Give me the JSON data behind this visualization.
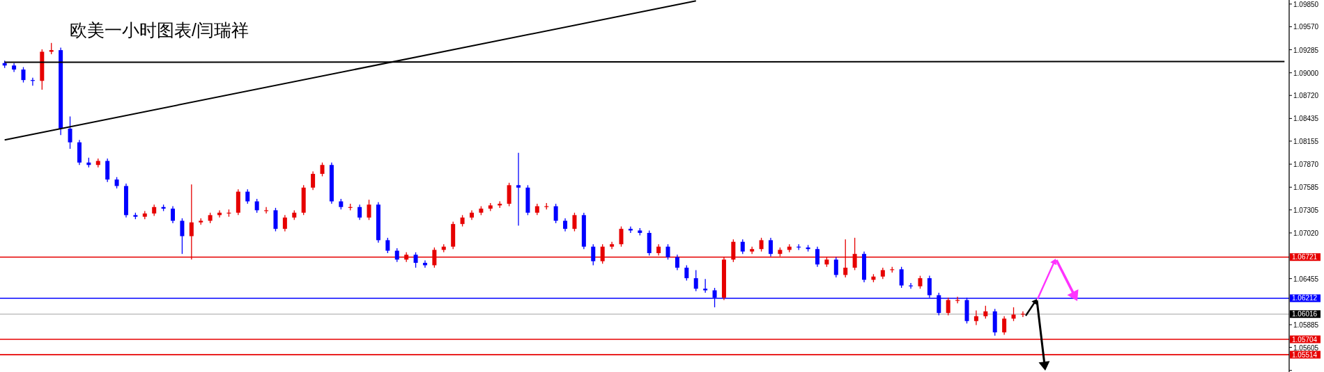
{
  "chart_data": {
    "type": "candlestick",
    "title": "欧美一小时图表/闫瑞祥",
    "categories": [
      null,
      null,
      null,
      null,
      null,
      null,
      null,
      null,
      null,
      null,
      null,
      null,
      null,
      null,
      null,
      null,
      null,
      null,
      null,
      null,
      null,
      null,
      null,
      null,
      null,
      null,
      null,
      null,
      null,
      null,
      null,
      null,
      null,
      null,
      null,
      null,
      null,
      null,
      null,
      null,
      null,
      null,
      null,
      null,
      null,
      null,
      null,
      null,
      null,
      null,
      null,
      null,
      null,
      null,
      null,
      null,
      null,
      null,
      null,
      null,
      null,
      null,
      null,
      null,
      null,
      null,
      null,
      null,
      null,
      null,
      null,
      null,
      null,
      null,
      null,
      null,
      null,
      null,
      null,
      null,
      null,
      null,
      null,
      null,
      null,
      null,
      null,
      null,
      null,
      null,
      null,
      null,
      null,
      null,
      null,
      null,
      null,
      null,
      null,
      null,
      null,
      null,
      null,
      null,
      null,
      null,
      null,
      null,
      null,
      null,
      null,
      null,
      null,
      null,
      null,
      null,
      null,
      null,
      null,
      null,
      null,
      null,
      null,
      null,
      null,
      null,
      null,
      null,
      null,
      null,
      null,
      null,
      null,
      null,
      null,
      null,
      null,
      null
    ],
    "series": [
      {
        "colors": [
          "#0000ff",
          "#0000ff",
          "#0000ff",
          "#0000ff",
          "#e60000",
          "#e60000",
          "#0000ff",
          "#0000ff",
          "#0000ff",
          "#0000ff",
          "#e60000",
          "#0000ff",
          "#0000ff",
          "#0000ff",
          "#0000ff",
          "#e60000",
          "#e60000",
          "#0000ff",
          "#0000ff",
          "#0000ff",
          "#e60000",
          "#e60000",
          "#e60000",
          "#e60000",
          "#e60000",
          "#e60000",
          "#0000ff",
          "#0000ff",
          "#e60000",
          "#0000ff",
          "#e60000",
          "#e60000",
          "#e60000",
          "#e60000",
          "#e60000",
          "#0000ff",
          "#0000ff",
          "#e60000",
          "#0000ff",
          "#e60000",
          "#0000ff",
          "#0000ff",
          "#0000ff",
          "#e60000",
          "#0000ff",
          "#0000ff",
          "#e60000",
          "#e60000",
          "#e60000",
          "#e60000",
          "#e60000",
          "#e60000",
          "#e60000",
          "#e60000",
          "#e60000",
          "#0000ff",
          "#0000ff",
          "#e60000",
          "#e60000",
          "#0000ff",
          "#0000ff",
          "#e60000",
          "#0000ff",
          "#0000ff",
          "#e60000",
          "#e60000",
          "#e60000",
          "#0000ff",
          "#0000ff",
          "#0000ff",
          "#e60000",
          "#0000ff",
          "#0000ff",
          "#0000ff",
          "#0000ff",
          "#0000ff",
          "#0000ff",
          "#e60000",
          "#e60000",
          "#0000ff",
          "#e60000",
          "#e60000",
          "#0000ff",
          "#e60000",
          "#e60000",
          "#0000ff",
          "#0000ff",
          "#0000ff",
          "#e60000",
          "#0000ff",
          "#e60000",
          "#e60000",
          "#0000ff",
          "#e60000",
          "#e60000",
          "#e60000",
          "#0000ff",
          "#0000ff",
          "#e60000",
          "#0000ff",
          "#0000ff",
          "#e60000",
          "#e60000",
          "#0000ff",
          "#e60000",
          "#e60000",
          "#0000ff",
          "#e60000",
          "#e60000",
          "#e60000",
          null,
          null,
          null,
          null,
          null,
          null,
          null,
          null,
          null,
          null,
          null,
          null,
          null,
          null,
          null,
          null,
          null,
          null,
          null,
          null,
          null,
          null,
          null,
          null,
          null,
          null,
          null,
          null
        ],
        "ohlc": [
          [
            1.0912,
            1.0915,
            1.0906,
            1.0909
          ],
          [
            1.0909,
            1.0912,
            1.0901,
            1.0904
          ],
          [
            1.0904,
            1.0907,
            1.0888,
            1.0891
          ],
          [
            1.0891,
            1.0894,
            1.0884,
            1.089
          ],
          [
            1.089,
            1.0929,
            1.0879,
            1.0926
          ],
          [
            1.0926,
            1.0937,
            1.0923,
            1.0928
          ],
          [
            1.0928,
            1.0931,
            1.0823,
            1.0831
          ],
          [
            1.0831,
            1.0846,
            1.0806,
            1.0814
          ],
          [
            1.0814,
            1.0817,
            1.0786,
            1.0789
          ],
          [
            1.0789,
            1.0795,
            1.0783,
            1.0786
          ],
          [
            1.0786,
            1.0794,
            1.0783,
            1.0791
          ],
          [
            1.0791,
            1.0794,
            1.0765,
            1.0768
          ],
          [
            1.0768,
            1.0771,
            1.0757,
            1.076
          ],
          [
            1.076,
            1.0763,
            1.0721,
            1.0724
          ],
          [
            1.0724,
            1.0727,
            1.0719,
            1.0722
          ],
          [
            1.0722,
            1.0729,
            1.0719,
            1.0726
          ],
          [
            1.0726,
            1.0737,
            1.0723,
            1.0734
          ],
          [
            1.0734,
            1.0737,
            1.0729,
            1.0732
          ],
          [
            1.0732,
            1.0735,
            1.0714,
            1.0717
          ],
          [
            1.0717,
            1.072,
            1.0676,
            1.0698
          ],
          [
            1.0698,
            1.0762,
            1.0669,
            1.0715
          ],
          [
            1.0715,
            1.072,
            1.0712,
            1.0717
          ],
          [
            1.0717,
            1.0727,
            1.0714,
            1.0724
          ],
          [
            1.0724,
            1.073,
            1.0721,
            1.0727
          ],
          [
            1.0727,
            1.0731,
            1.0722,
            1.0727
          ],
          [
            1.0727,
            1.0756,
            1.0724,
            1.0753
          ],
          [
            1.0753,
            1.0756,
            1.0738,
            1.0741
          ],
          [
            1.0741,
            1.0744,
            1.0727,
            1.073
          ],
          [
            1.073,
            1.0734,
            1.0726,
            1.073
          ],
          [
            1.073,
            1.0733,
            1.0704,
            1.0707
          ],
          [
            1.0707,
            1.0724,
            1.0704,
            1.0721
          ],
          [
            1.0721,
            1.073,
            1.0718,
            1.0727
          ],
          [
            1.0727,
            1.0761,
            1.0724,
            1.0758
          ],
          [
            1.0758,
            1.0778,
            1.0755,
            1.0775
          ],
          [
            1.0775,
            1.0789,
            1.0772,
            1.0786
          ],
          [
            1.0786,
            1.0789,
            1.0738,
            1.0741
          ],
          [
            1.0741,
            1.0744,
            1.0731,
            1.0734
          ],
          [
            1.0734,
            1.0738,
            1.073,
            1.0734
          ],
          [
            1.0734,
            1.0737,
            1.0718,
            1.0721
          ],
          [
            1.0721,
            1.0743,
            1.0718,
            1.0737
          ],
          [
            1.0737,
            1.074,
            1.069,
            1.0693
          ],
          [
            1.0693,
            1.0696,
            1.0677,
            1.068
          ],
          [
            1.068,
            1.0683,
            1.0666,
            1.0669
          ],
          [
            1.0669,
            1.0678,
            1.0666,
            1.0675
          ],
          [
            1.0675,
            1.0678,
            1.0659,
            1.0665
          ],
          [
            1.0665,
            1.0668,
            1.0659,
            1.0662
          ],
          [
            1.0662,
            1.0684,
            1.0659,
            1.0681
          ],
          [
            1.0681,
            1.0688,
            1.0678,
            1.0685
          ],
          [
            1.0685,
            1.0716,
            1.0682,
            1.0713
          ],
          [
            1.0713,
            1.0724,
            1.071,
            1.0721
          ],
          [
            1.0721,
            1.073,
            1.0718,
            1.0727
          ],
          [
            1.0727,
            1.0735,
            1.0724,
            1.0732
          ],
          [
            1.0732,
            1.0739,
            1.0729,
            1.0736
          ],
          [
            1.0736,
            1.0741,
            1.0733,
            1.0738
          ],
          [
            1.0738,
            1.0764,
            1.0735,
            1.0761
          ],
          [
            1.0761,
            1.0801,
            1.0711,
            1.0758
          ],
          [
            1.0758,
            1.0761,
            1.0724,
            1.0727
          ],
          [
            1.0727,
            1.0738,
            1.0724,
            1.0735
          ],
          [
            1.0735,
            1.0739,
            1.0731,
            1.0735
          ],
          [
            1.0735,
            1.0738,
            1.0714,
            1.0717
          ],
          [
            1.0717,
            1.072,
            1.0704,
            1.0707
          ],
          [
            1.0707,
            1.0727,
            1.0704,
            1.0724
          ],
          [
            1.0724,
            1.0727,
            1.0682,
            1.0685
          ],
          [
            1.0685,
            1.0688,
            1.0662,
            1.0667
          ],
          [
            1.0667,
            1.0688,
            1.0664,
            1.0685
          ],
          [
            1.0685,
            1.0691,
            1.0682,
            1.0688
          ],
          [
            1.0688,
            1.071,
            1.0685,
            1.0707
          ],
          [
            1.0707,
            1.071,
            1.0702,
            1.0705
          ],
          [
            1.0705,
            1.0708,
            1.0699,
            1.0702
          ],
          [
            1.0702,
            1.0705,
            1.0674,
            1.0677
          ],
          [
            1.0677,
            1.0688,
            1.0674,
            1.0685
          ],
          [
            1.0685,
            1.0688,
            1.0669,
            1.0672
          ],
          [
            1.0672,
            1.0675,
            1.0656,
            1.0659
          ],
          [
            1.0659,
            1.0662,
            1.0643,
            1.0646
          ],
          [
            1.0646,
            1.0656,
            1.063,
            1.0633
          ],
          [
            1.0633,
            1.0645,
            1.0628,
            1.0631
          ],
          [
            1.0631,
            1.0634,
            1.061,
            1.0622
          ],
          [
            1.0622,
            1.0672,
            1.0619,
            1.0669
          ],
          [
            1.0669,
            1.0694,
            1.0666,
            1.0691
          ],
          [
            1.0691,
            1.0694,
            1.0676,
            1.0679
          ],
          [
            1.0679,
            1.0685,
            1.0676,
            1.0682
          ],
          [
            1.0682,
            1.0696,
            1.0679,
            1.0693
          ],
          [
            1.0693,
            1.0696,
            1.0673,
            1.0676
          ],
          [
            1.0676,
            1.0684,
            1.0673,
            1.0681
          ],
          [
            1.0681,
            1.0688,
            1.0678,
            1.0685
          ],
          [
            1.0685,
            1.0688,
            1.0681,
            1.0684
          ],
          [
            1.0684,
            1.0687,
            1.0679,
            1.0682
          ],
          [
            1.0682,
            1.0685,
            1.066,
            1.0663
          ],
          [
            1.0663,
            1.0672,
            1.066,
            1.0669
          ],
          [
            1.0669,
            1.0672,
            1.0647,
            1.065
          ],
          [
            1.065,
            1.0694,
            1.0647,
            1.0659
          ],
          [
            1.0659,
            1.0696,
            1.0656,
            1.0676
          ],
          [
            1.0676,
            1.0679,
            1.0641,
            1.0644
          ],
          [
            1.0644,
            1.0651,
            1.0641,
            1.0648
          ],
          [
            1.0648,
            1.0659,
            1.0645,
            1.0656
          ],
          [
            1.0656,
            1.066,
            1.0653,
            1.0657
          ],
          [
            1.0657,
            1.066,
            1.0634,
            1.0637
          ],
          [
            1.0637,
            1.064,
            1.0633,
            1.0636
          ],
          [
            1.0636,
            1.0649,
            1.0633,
            1.0646
          ],
          [
            1.0646,
            1.0649,
            1.0622,
            1.0625
          ],
          [
            1.0625,
            1.0628,
            1.06,
            1.0603
          ],
          [
            1.0603,
            1.0622,
            1.06,
            1.0619
          ],
          [
            1.0619,
            1.0623,
            1.0615,
            1.0619
          ],
          [
            1.0619,
            1.0622,
            1.059,
            1.0593
          ],
          [
            1.0593,
            1.0606,
            1.0588,
            1.0599
          ],
          [
            1.0599,
            1.0612,
            1.0596,
            1.0605
          ],
          [
            1.0605,
            1.0608,
            1.0575,
            1.0579
          ],
          [
            1.0579,
            1.0599,
            1.0576,
            1.0596
          ],
          [
            1.0596,
            1.061,
            1.0593,
            1.0601
          ],
          [
            1.0601,
            1.0605,
            1.0598,
            1.0602
          ],
          null,
          null,
          null,
          null,
          null,
          null,
          null,
          null,
          null,
          null,
          null,
          null,
          null,
          null,
          null,
          null,
          null,
          null,
          null,
          null,
          null,
          null,
          null,
          null,
          null,
          null,
          null,
          null
        ]
      },
      {
        "type": "line",
        "color": "#000000",
        "values": [
          1.0913,
          null,
          null,
          null,
          null,
          null,
          null,
          null,
          null,
          null,
          null,
          null,
          null,
          null,
          null,
          null,
          null,
          null,
          null,
          null,
          null,
          null,
          null,
          null,
          null,
          null,
          null,
          null,
          null,
          null,
          null,
          null,
          null,
          null,
          null,
          null,
          null,
          null,
          null,
          null,
          null,
          null,
          null,
          null,
          null,
          null,
          null,
          null,
          null,
          null,
          null,
          null,
          null,
          null,
          null,
          null,
          null,
          null,
          null,
          null,
          null,
          null,
          null,
          null,
          null,
          null,
          null,
          null,
          null,
          null,
          null,
          null,
          null,
          null,
          null,
          null,
          null,
          null,
          null,
          null,
          null,
          null,
          null,
          null,
          null,
          null,
          null,
          null,
          null,
          null,
          null,
          null,
          null,
          null,
          null,
          null,
          null,
          null,
          null,
          null,
          null,
          null,
          null,
          null,
          null,
          null,
          null,
          null,
          null,
          null,
          null,
          null,
          null,
          null,
          null,
          null,
          null,
          null,
          null,
          null,
          null,
          null,
          null,
          null,
          null,
          null,
          null,
          null,
          null,
          null,
          null,
          null,
          null,
          null,
          null,
          null,
          null,
          1.0914
        ]
      },
      {
        "type": "line",
        "color": "#000000",
        "values": [
          1.0817,
          null,
          null,
          null,
          null,
          null,
          null,
          null,
          null,
          null,
          null,
          null,
          null,
          null,
          null,
          null,
          null,
          null,
          null,
          null,
          null,
          null,
          null,
          null,
          null,
          null,
          null,
          null,
          null,
          null,
          null,
          null,
          null,
          null,
          null,
          null,
          null,
          null,
          null,
          null,
          null,
          null,
          null,
          null,
          null,
          null,
          null,
          null,
          null,
          null,
          null,
          null,
          null,
          null,
          null,
          null,
          null,
          null,
          null,
          null,
          null,
          null,
          null,
          null,
          null,
          null,
          null,
          null,
          null,
          null,
          null,
          null,
          null,
          null,
          1.0989,
          null,
          null,
          null,
          null,
          null,
          null,
          null,
          null,
          null,
          null,
          null,
          null,
          null,
          null,
          null,
          null,
          null,
          null,
          null,
          null,
          null,
          null,
          null,
          null,
          null,
          null,
          null,
          null,
          null,
          null,
          null,
          null,
          null,
          null,
          null,
          null,
          null,
          null,
          null,
          null,
          null,
          null,
          null,
          null,
          null,
          null,
          null,
          null,
          null,
          null,
          null,
          null,
          null,
          null,
          null,
          null,
          null,
          null,
          null,
          null,
          null,
          null,
          null
        ]
      }
    ],
    "ylim": [
      1.053,
      1.099
    ],
    "yticks": [
      {
        "value": 1.0985,
        "label": "1.09850"
      },
      {
        "value": 1.0957,
        "label": "1.09570"
      },
      {
        "value": 1.09285,
        "label": "1.09285"
      },
      {
        "value": 1.09,
        "label": "1.09000"
      },
      {
        "value": 1.0872,
        "label": "1.08720"
      },
      {
        "value": 1.08435,
        "label": "1.08435"
      },
      {
        "value": 1.08155,
        "label": "1.08155"
      },
      {
        "value": 1.0787,
        "label": "1.07870"
      },
      {
        "value": 1.07585,
        "label": "1.07585"
      },
      {
        "value": 1.07305,
        "label": "1.07305"
      },
      {
        "value": 1.0702,
        "label": "1.07020"
      },
      {
        "value": 1.06455,
        "label": "1.06455"
      },
      {
        "value": 1.05885,
        "label": "1.05885"
      },
      {
        "value": 1.05605,
        "label": "1.05605"
      },
      {
        "value": 1.0532,
        "label": null
      }
    ],
    "ref_lines": [
      {
        "axis": "y",
        "value": 1.06721,
        "label": "1.06721",
        "color": "#e60000"
      },
      {
        "axis": "y",
        "value": 1.06212,
        "label": "1.06212",
        "color": "#0000ff"
      },
      {
        "axis": "y",
        "value": 1.06016,
        "label": "1.06016",
        "color": "#c0c0c0"
      },
      {
        "axis": "y",
        "value": 1.05704,
        "label": "1.05704",
        "color": "#e60000"
      },
      {
        "axis": "y",
        "value": 1.05514,
        "label": "1.05514",
        "color": "#e60000"
      }
    ],
    "tick_labels": "y",
    "grid": false
  }
}
